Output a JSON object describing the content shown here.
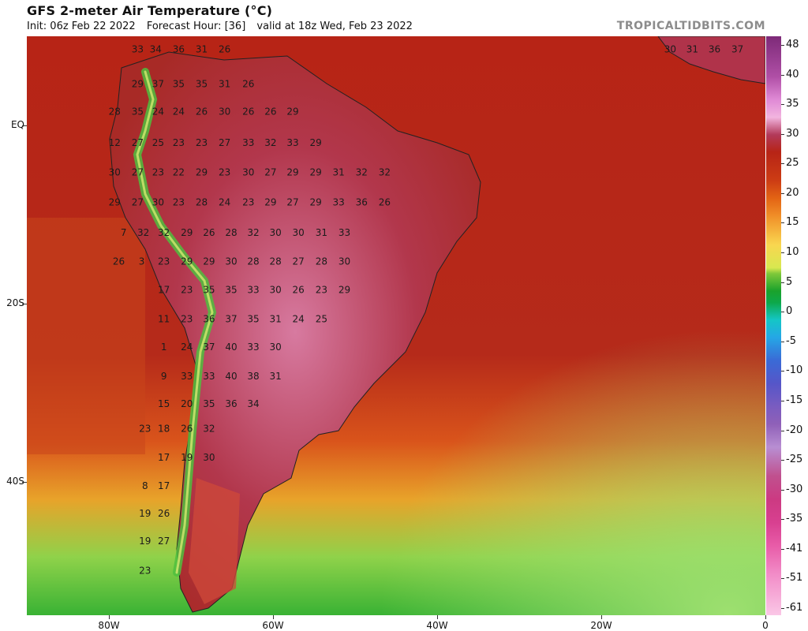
{
  "header": {
    "title": "GFS 2-meter Air Temperature (°C)",
    "init": "Init: 06z Feb 22 2022",
    "forecast_hour": "Forecast Hour: [36]",
    "valid": "valid at 18z Wed, Feb 23 2022",
    "brand": "TROPICALTIDBITS.COM"
  },
  "axes": {
    "lat_labels": [
      "EQ",
      "20S",
      "40S"
    ],
    "lon_labels": [
      "80W",
      "60W",
      "40W",
      "20W",
      "0"
    ]
  },
  "colorbar": {
    "labels": [
      "48",
      "40",
      "35",
      "30",
      "25",
      "20",
      "15",
      "10",
      "5",
      "0",
      "-5",
      "-10",
      "-15",
      "-20",
      "-25",
      "-30",
      "-35",
      "-41",
      "-51",
      "-61"
    ]
  },
  "temperatures": [
    {
      "v": "33",
      "lon": -76.5,
      "lat": 8.2
    },
    {
      "v": "34",
      "lon": -74.3,
      "lat": 8.2
    },
    {
      "v": "36",
      "lon": -71.5,
      "lat": 8.2
    },
    {
      "v": "31",
      "lon": -68.7,
      "lat": 8.2
    },
    {
      "v": "26",
      "lon": -65.9,
      "lat": 8.2
    },
    {
      "v": "29",
      "lon": -76.5,
      "lat": 4.3
    },
    {
      "v": "37",
      "lon": -74.0,
      "lat": 4.3
    },
    {
      "v": "35",
      "lon": -71.5,
      "lat": 4.3
    },
    {
      "v": "35",
      "lon": -68.7,
      "lat": 4.3
    },
    {
      "v": "31",
      "lon": -65.9,
      "lat": 4.3
    },
    {
      "v": "26",
      "lon": -63.0,
      "lat": 4.3
    },
    {
      "v": "28",
      "lon": -79.3,
      "lat": 1.2
    },
    {
      "v": "35",
      "lon": -76.5,
      "lat": 1.2
    },
    {
      "v": "24",
      "lon": -74.0,
      "lat": 1.2
    },
    {
      "v": "24",
      "lon": -71.5,
      "lat": 1.2
    },
    {
      "v": "26",
      "lon": -68.7,
      "lat": 1.2
    },
    {
      "v": "30",
      "lon": -65.9,
      "lat": 1.2
    },
    {
      "v": "26",
      "lon": -63.0,
      "lat": 1.2
    },
    {
      "v": "26",
      "lon": -60.3,
      "lat": 1.2
    },
    {
      "v": "29",
      "lon": -57.6,
      "lat": 1.2
    },
    {
      "v": "12",
      "lon": -79.3,
      "lat": -2.3
    },
    {
      "v": "27",
      "lon": -76.5,
      "lat": -2.3
    },
    {
      "v": "25",
      "lon": -74.0,
      "lat": -2.3
    },
    {
      "v": "23",
      "lon": -71.5,
      "lat": -2.3
    },
    {
      "v": "23",
      "lon": -68.7,
      "lat": -2.3
    },
    {
      "v": "27",
      "lon": -65.9,
      "lat": -2.3
    },
    {
      "v": "33",
      "lon": -63.0,
      "lat": -2.3
    },
    {
      "v": "32",
      "lon": -60.3,
      "lat": -2.3
    },
    {
      "v": "33",
      "lon": -57.6,
      "lat": -2.3
    },
    {
      "v": "29",
      "lon": -54.8,
      "lat": -2.3
    },
    {
      "v": "30",
      "lon": -79.3,
      "lat": -5.6
    },
    {
      "v": "27",
      "lon": -76.5,
      "lat": -5.6
    },
    {
      "v": "23",
      "lon": -74.0,
      "lat": -5.6
    },
    {
      "v": "22",
      "lon": -71.5,
      "lat": -5.6
    },
    {
      "v": "29",
      "lon": -68.7,
      "lat": -5.6
    },
    {
      "v": "23",
      "lon": -65.9,
      "lat": -5.6
    },
    {
      "v": "30",
      "lon": -63.0,
      "lat": -5.6
    },
    {
      "v": "27",
      "lon": -60.3,
      "lat": -5.6
    },
    {
      "v": "29",
      "lon": -57.6,
      "lat": -5.6
    },
    {
      "v": "29",
      "lon": -54.8,
      "lat": -5.6
    },
    {
      "v": "31",
      "lon": -52.0,
      "lat": -5.6
    },
    {
      "v": "32",
      "lon": -49.2,
      "lat": -5.6
    },
    {
      "v": "32",
      "lon": -46.4,
      "lat": -5.6
    },
    {
      "v": "29",
      "lon": -79.3,
      "lat": -9.0
    },
    {
      "v": "27",
      "lon": -76.5,
      "lat": -9.0
    },
    {
      "v": "30",
      "lon": -74.0,
      "lat": -9.0
    },
    {
      "v": "23",
      "lon": -71.5,
      "lat": -9.0
    },
    {
      "v": "28",
      "lon": -68.7,
      "lat": -9.0
    },
    {
      "v": "24",
      "lon": -65.9,
      "lat": -9.0
    },
    {
      "v": "23",
      "lon": -63.0,
      "lat": -9.0
    },
    {
      "v": "29",
      "lon": -60.3,
      "lat": -9.0
    },
    {
      "v": "27",
      "lon": -57.6,
      "lat": -9.0
    },
    {
      "v": "29",
      "lon": -54.8,
      "lat": -9.0
    },
    {
      "v": "33",
      "lon": -52.0,
      "lat": -9.0
    },
    {
      "v": "36",
      "lon": -49.2,
      "lat": -9.0
    },
    {
      "v": "26",
      "lon": -46.4,
      "lat": -9.0
    },
    {
      "v": "7",
      "lon": -78.2,
      "lat": -12.4
    },
    {
      "v": "32",
      "lon": -75.8,
      "lat": -12.4
    },
    {
      "v": "32",
      "lon": -73.3,
      "lat": -12.4
    },
    {
      "v": "29",
      "lon": -70.5,
      "lat": -12.4
    },
    {
      "v": "26",
      "lon": -67.8,
      "lat": -12.4
    },
    {
      "v": "28",
      "lon": -65.1,
      "lat": -12.4
    },
    {
      "v": "32",
      "lon": -62.4,
      "lat": -12.4
    },
    {
      "v": "30",
      "lon": -59.7,
      "lat": -12.4
    },
    {
      "v": "30",
      "lon": -56.9,
      "lat": -12.4
    },
    {
      "v": "31",
      "lon": -54.1,
      "lat": -12.4
    },
    {
      "v": "33",
      "lon": -51.3,
      "lat": -12.4
    },
    {
      "v": "26",
      "lon": -78.8,
      "lat": -15.6
    },
    {
      "v": "3",
      "lon": -76.0,
      "lat": -15.6
    },
    {
      "v": "23",
      "lon": -73.3,
      "lat": -15.6
    },
    {
      "v": "29",
      "lon": -70.5,
      "lat": -15.6
    },
    {
      "v": "29",
      "lon": -67.8,
      "lat": -15.6
    },
    {
      "v": "30",
      "lon": -65.1,
      "lat": -15.6
    },
    {
      "v": "28",
      "lon": -62.4,
      "lat": -15.6
    },
    {
      "v": "28",
      "lon": -59.7,
      "lat": -15.6
    },
    {
      "v": "27",
      "lon": -56.9,
      "lat": -15.6
    },
    {
      "v": "28",
      "lon": -54.1,
      "lat": -15.6
    },
    {
      "v": "30",
      "lon": -51.3,
      "lat": -15.6
    },
    {
      "v": "17",
      "lon": -73.3,
      "lat": -18.8
    },
    {
      "v": "23",
      "lon": -70.5,
      "lat": -18.8
    },
    {
      "v": "35",
      "lon": -67.8,
      "lat": -18.8
    },
    {
      "v": "35",
      "lon": -65.1,
      "lat": -18.8
    },
    {
      "v": "33",
      "lon": -62.4,
      "lat": -18.8
    },
    {
      "v": "30",
      "lon": -59.7,
      "lat": -18.8
    },
    {
      "v": "26",
      "lon": -56.9,
      "lat": -18.8
    },
    {
      "v": "23",
      "lon": -54.1,
      "lat": -18.8
    },
    {
      "v": "29",
      "lon": -51.3,
      "lat": -18.8
    },
    {
      "v": "11",
      "lon": -73.3,
      "lat": -22.1
    },
    {
      "v": "23",
      "lon": -70.5,
      "lat": -22.1
    },
    {
      "v": "36",
      "lon": -67.8,
      "lat": -22.1
    },
    {
      "v": "37",
      "lon": -65.1,
      "lat": -22.1
    },
    {
      "v": "35",
      "lon": -62.4,
      "lat": -22.1
    },
    {
      "v": "31",
      "lon": -59.7,
      "lat": -22.1
    },
    {
      "v": "24",
      "lon": -56.9,
      "lat": -22.1
    },
    {
      "v": "25",
      "lon": -54.1,
      "lat": -22.1
    },
    {
      "v": "1",
      "lon": -73.3,
      "lat": -25.2
    },
    {
      "v": "24",
      "lon": -70.5,
      "lat": -25.2
    },
    {
      "v": "37",
      "lon": -67.8,
      "lat": -25.2
    },
    {
      "v": "40",
      "lon": -65.1,
      "lat": -25.2
    },
    {
      "v": "33",
      "lon": -62.4,
      "lat": -25.2
    },
    {
      "v": "30",
      "lon": -59.7,
      "lat": -25.2
    },
    {
      "v": "9",
      "lon": -73.3,
      "lat": -28.5
    },
    {
      "v": "33",
      "lon": -70.5,
      "lat": -28.5
    },
    {
      "v": "33",
      "lon": -67.8,
      "lat": -28.5
    },
    {
      "v": "40",
      "lon": -65.1,
      "lat": -28.5
    },
    {
      "v": "38",
      "lon": -62.4,
      "lat": -28.5
    },
    {
      "v": "31",
      "lon": -59.7,
      "lat": -28.5
    },
    {
      "v": "15",
      "lon": -73.3,
      "lat": -31.6
    },
    {
      "v": "20",
      "lon": -70.5,
      "lat": -31.6
    },
    {
      "v": "35",
      "lon": -67.8,
      "lat": -31.6
    },
    {
      "v": "36",
      "lon": -65.1,
      "lat": -31.6
    },
    {
      "v": "34",
      "lon": -62.4,
      "lat": -31.6
    },
    {
      "v": "23",
      "lon": -75.6,
      "lat": -34.4
    },
    {
      "v": "18",
      "lon": -73.3,
      "lat": -34.4
    },
    {
      "v": "26",
      "lon": -70.5,
      "lat": -34.4
    },
    {
      "v": "32",
      "lon": -67.8,
      "lat": -34.4
    },
    {
      "v": "17",
      "lon": -73.3,
      "lat": -37.6
    },
    {
      "v": "19",
      "lon": -70.5,
      "lat": -37.6
    },
    {
      "v": "30",
      "lon": -67.8,
      "lat": -37.6
    },
    {
      "v": "8",
      "lon": -75.6,
      "lat": -40.8
    },
    {
      "v": "17",
      "lon": -73.3,
      "lat": -40.8
    },
    {
      "v": "19",
      "lon": -75.6,
      "lat": -43.9
    },
    {
      "v": "26",
      "lon": -73.3,
      "lat": -43.9
    },
    {
      "v": "19",
      "lon": -75.6,
      "lat": -47.0
    },
    {
      "v": "27",
      "lon": -73.3,
      "lat": -47.0
    },
    {
      "v": "23",
      "lon": -75.6,
      "lat": -50.3
    },
    {
      "v": "30",
      "lon": -11.6,
      "lat": 8.2
    },
    {
      "v": "31",
      "lon": -8.9,
      "lat": 8.2
    },
    {
      "v": "36",
      "lon": -6.2,
      "lat": 8.2
    },
    {
      "v": "37",
      "lon": -3.4,
      "lat": 8.2
    }
  ]
}
